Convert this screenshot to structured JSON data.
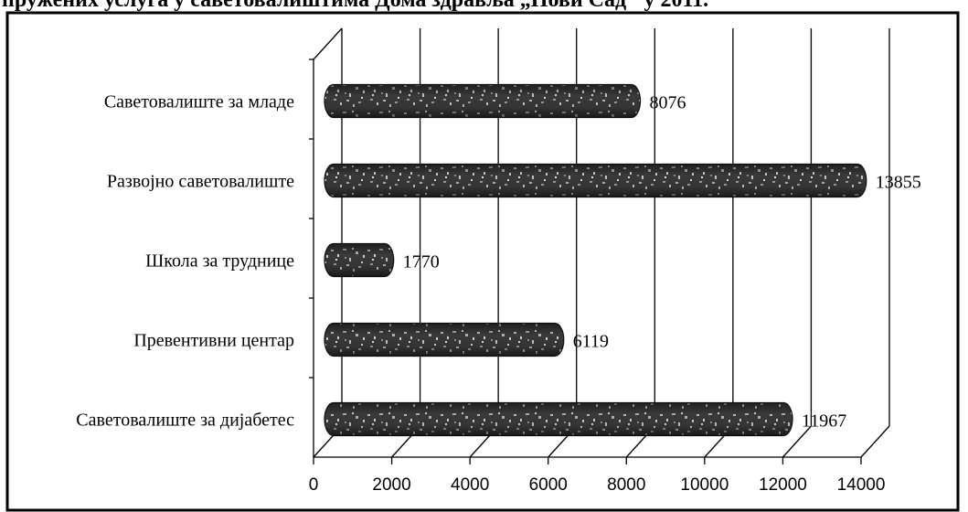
{
  "header_fragment": "пружених услуга у саветовалиштима Дома здравља „Нови Сад\" у 2011.",
  "chart_data": {
    "type": "bar",
    "orientation": "horizontal",
    "categories": [
      "Саветовалиште за младе",
      "Развојно саветовалиште",
      "Школа за труднице",
      "Превентивни центар",
      "Саветовалиште за дијабетес"
    ],
    "values": [
      8076,
      13855,
      1770,
      6119,
      11967
    ],
    "value_labels": [
      "8076",
      "13855",
      "1770",
      "6119",
      "11967"
    ],
    "xlim": [
      0,
      14000
    ],
    "x_ticks": [
      "0",
      "2000",
      "4000",
      "6000",
      "8000",
      "10000",
      "12000",
      "14000"
    ],
    "title": "",
    "xlabel": "",
    "ylabel": "",
    "grid": true,
    "legend": "none",
    "bar_color": "#3a3a3a"
  }
}
